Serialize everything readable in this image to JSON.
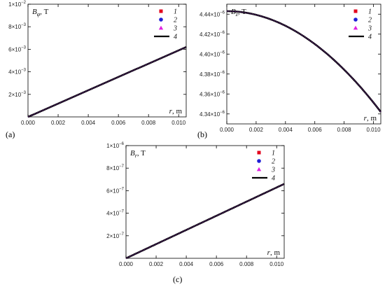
{
  "colors": {
    "series_1": "#e3001b",
    "series_2": "#1f1fd6",
    "series_3": "#e020e0",
    "series_4": "#000000",
    "line_overlay": "#6a2a8a"
  },
  "chart_data": [
    {
      "type": "line",
      "panel_label": "(a)",
      "ylabel_main": "B",
      "ylabel_sub": "φ",
      "ylabel_unit": ", T",
      "xlabel_main": "r",
      "xlabel_unit": ", m",
      "xlim": [
        0,
        0.0105
      ],
      "ylim": [
        0,
        0.01
      ],
      "x_ticks": [
        0,
        0.002,
        0.004,
        0.006,
        0.008,
        0.01
      ],
      "x_tick_labels": [
        "0.000",
        "0.002",
        "0.004",
        "0.006",
        "0.008",
        "0.010"
      ],
      "y_ticks": [
        0.002,
        0.004,
        0.006,
        0.008,
        0.01
      ],
      "y_tick_labels": [
        {
          "mant": "2×10",
          "exp": "−3"
        },
        {
          "mant": "4×10",
          "exp": "−3"
        },
        {
          "mant": "6×10",
          "exp": "−3"
        },
        {
          "mant": "8×10",
          "exp": "−3"
        },
        {
          "mant": "1×10",
          "exp": "−2"
        }
      ],
      "legend": [
        "1",
        "2",
        "3",
        "4"
      ],
      "curve": {
        "kind": "linear",
        "x0": 0,
        "y0": 0,
        "x1": 0.0105,
        "y1": 0.0062
      },
      "grid": false,
      "legend_position": "top-right"
    },
    {
      "type": "line",
      "panel_label": "(b)",
      "ylabel_main": "B",
      "ylabel_sub": "z",
      "ylabel_unit": ", T",
      "xlabel_main": "r",
      "xlabel_unit": ", m",
      "xlim": [
        0,
        0.0105
      ],
      "ylim": [
        4.33e-06,
        4.45e-06
      ],
      "x_ticks": [
        0,
        0.002,
        0.004,
        0.006,
        0.008,
        0.01
      ],
      "x_tick_labels": [
        "0.000",
        "0.002",
        "0.004",
        "0.006",
        "0.008",
        "0.010"
      ],
      "y_ticks": [
        4.34e-06,
        4.36e-06,
        4.38e-06,
        4.4e-06,
        4.42e-06,
        4.44e-06
      ],
      "y_tick_labels": [
        {
          "mant": "4.34×10",
          "exp": "−6"
        },
        {
          "mant": "4.36×10",
          "exp": "−6"
        },
        {
          "mant": "4.38×10",
          "exp": "−6"
        },
        {
          "mant": "4.40×10",
          "exp": "−6"
        },
        {
          "mant": "4.42×10",
          "exp": "−6"
        },
        {
          "mant": "4.44×10",
          "exp": "−6"
        }
      ],
      "legend": [
        "1",
        "2",
        "3",
        "4"
      ],
      "curve": {
        "kind": "parabolic",
        "x0": 0,
        "y0": 4.443e-06,
        "x1": 0.0105,
        "y1": 4.342e-06
      },
      "grid": false,
      "legend_position": "top-right"
    },
    {
      "type": "line",
      "panel_label": "(c)",
      "ylabel_main": "B",
      "ylabel_sub": "r",
      "ylabel_unit": ", T",
      "xlabel_main": "r",
      "xlabel_unit": ", m",
      "xlim": [
        0,
        0.0105
      ],
      "ylim": [
        0,
        1e-06
      ],
      "x_ticks": [
        0,
        0.002,
        0.004,
        0.006,
        0.008,
        0.01
      ],
      "x_tick_labels": [
        "0.000",
        "0.002",
        "0.004",
        "0.006",
        "0.008",
        "0.010"
      ],
      "y_ticks": [
        2e-07,
        4e-07,
        6e-07,
        8e-07,
        1e-06
      ],
      "y_tick_labels": [
        {
          "mant": "2×10",
          "exp": "−7"
        },
        {
          "mant": "4×10",
          "exp": "−7"
        },
        {
          "mant": "6×10",
          "exp": "−7"
        },
        {
          "mant": "8×10",
          "exp": "−7"
        },
        {
          "mant": "1×10",
          "exp": "−6"
        }
      ],
      "legend": [
        "1",
        "2",
        "3",
        "4"
      ],
      "curve": {
        "kind": "linear",
        "x0": 0,
        "y0": 0,
        "x1": 0.0105,
        "y1": 6.6e-07
      },
      "grid": false,
      "legend_position": "top-right"
    }
  ]
}
